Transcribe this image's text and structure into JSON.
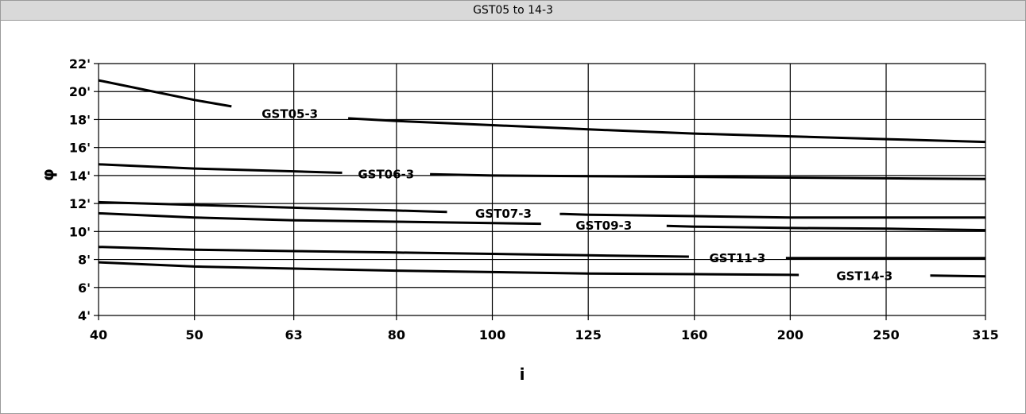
{
  "header": {
    "title": "GST05 to 14-3"
  },
  "chart_data": {
    "type": "line",
    "xlabel": "i",
    "ylabel": "φ",
    "x_ticks": [
      40,
      50,
      63,
      80,
      100,
      125,
      160,
      200,
      250,
      315
    ],
    "y_ticks": [
      4,
      6,
      8,
      10,
      12,
      14,
      16,
      18,
      20,
      22
    ],
    "y_tick_labels": [
      "4'",
      "6'",
      "8'",
      "10'",
      "12'",
      "14'",
      "16'",
      "18'",
      "20'",
      "22'"
    ],
    "ylim": [
      4,
      22
    ],
    "grid": true,
    "series": [
      {
        "name": "GST05-3",
        "x": [
          40,
          50,
          57,
          71,
          80,
          100,
          125,
          160,
          200,
          250,
          315
        ],
        "y": [
          20.8,
          19.4,
          18.7,
          18.1,
          17.9,
          17.6,
          17.3,
          17.0,
          16.8,
          16.6,
          16.4
        ]
      },
      {
        "name": "GST06-3",
        "x": [
          40,
          50,
          63,
          70,
          86,
          100,
          125,
          160,
          200,
          250,
          315
        ],
        "y": [
          14.8,
          14.5,
          14.3,
          14.2,
          14.1,
          14.0,
          13.95,
          13.9,
          13.85,
          13.8,
          13.75
        ]
      },
      {
        "name": "GST07-3",
        "x": [
          40,
          50,
          63,
          80,
          90,
          118,
          125,
          160,
          200,
          250,
          315
        ],
        "y": [
          12.1,
          11.9,
          11.7,
          11.5,
          11.4,
          11.25,
          11.2,
          11.1,
          11.0,
          11.0,
          11.0
        ]
      },
      {
        "name": "GST09-3",
        "x": [
          40,
          50,
          63,
          80,
          100,
          112,
          150,
          160,
          200,
          250,
          315
        ],
        "y": [
          11.3,
          11.0,
          10.8,
          10.7,
          10.6,
          10.55,
          10.4,
          10.35,
          10.25,
          10.2,
          10.1
        ]
      },
      {
        "name": "GST11-3",
        "x": [
          40,
          50,
          63,
          80,
          100,
          125,
          158,
          200,
          250,
          315
        ],
        "y": [
          8.9,
          8.7,
          8.6,
          8.5,
          8.4,
          8.3,
          8.2,
          8.1,
          8.1,
          8.1
        ]
      },
      {
        "name": "GST14-3",
        "x": [
          40,
          50,
          63,
          80,
          100,
          125,
          160,
          200,
          277,
          315
        ],
        "y": [
          7.8,
          7.5,
          7.35,
          7.2,
          7.1,
          7.0,
          6.95,
          6.9,
          6.85,
          6.8
        ]
      }
    ]
  }
}
